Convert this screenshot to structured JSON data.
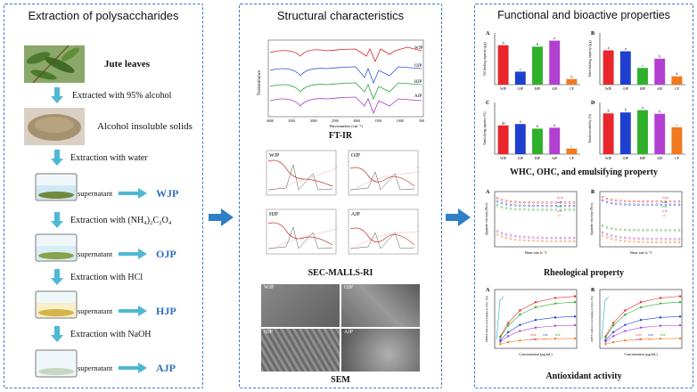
{
  "panels": {
    "extraction": {
      "title": "Extraction of polysaccharides",
      "material": "Jute leaves",
      "steps": [
        "Extracted with 95% alcohol",
        "Extraction with water",
        "Extraction with (NH₄)₂C₂O₄",
        "Extraction with HCl",
        "Extraction with NaOH"
      ],
      "ais_label": "Alcohol insoluble solids",
      "supernatant_label": "supernatant",
      "products": [
        "WJP",
        "OJP",
        "HJP",
        "AJP"
      ]
    },
    "structural": {
      "title": "Structural characteristics",
      "ftir_caption": "FT-IR",
      "ftir_ylabel": "Transmittance",
      "ftir_xlabel": "Wavenumber (cm⁻¹)",
      "ftir_ticks": [
        "4000",
        "3500",
        "3000",
        "2500",
        "2000",
        "1500",
        "1000",
        "500"
      ],
      "ftir_series": [
        "WJP",
        "OJP",
        "HJP",
        "AJP"
      ],
      "sec_caption": "SEC-MALLS-RI",
      "sec_panels": [
        "WJP",
        "OJP",
        "HJP",
        "AJP"
      ],
      "sem_caption": "SEM",
      "sem_panels": [
        "WJP",
        "OJP",
        "HJP",
        "AJP"
      ]
    },
    "functional": {
      "title": "Functional and bioactive properties",
      "whc_caption": "WHC, OHC, and emulsifying property",
      "rheology_caption": "Rheological property",
      "antioxidant_caption": "Antioxidant activity",
      "bar_categories": [
        "WJP",
        "OJP",
        "HJP",
        "AJP",
        "CP"
      ],
      "bar_colors": [
        "#e8262b",
        "#1f3fcf",
        "#2fb02a",
        "#b23fd0",
        "#f07a1f"
      ],
      "bar_charts": [
        {
          "letter": "A",
          "ylabel": "Oil holding capacity (g/g)",
          "values": [
            0.85,
            0.28,
            0.82,
            0.95,
            0.12
          ],
          "labels": [
            "b",
            "c",
            "b",
            "a",
            "d"
          ]
        },
        {
          "letter": "B",
          "ylabel": "Water holding capacity (g/g)",
          "values": [
            0.74,
            0.72,
            0.36,
            0.56,
            0.18
          ],
          "labels": [
            "a",
            "a",
            "c",
            "b",
            "d"
          ]
        },
        {
          "letter": "C",
          "ylabel": "Emulsifying capacity (%)",
          "values": [
            0.62,
            0.65,
            0.55,
            0.57,
            0.12
          ],
          "labels": [
            "ab",
            "a",
            "b",
            "b",
            "c"
          ]
        },
        {
          "letter": "D",
          "ylabel": "Emulsion stability (%)",
          "values": [
            0.88,
            0.9,
            0.95,
            0.87,
            0.58
          ],
          "labels": [
            "b",
            "b",
            "a",
            "b",
            "c"
          ]
        }
      ],
      "rheo_ylabel": "Apparent viscosity (Pa·s)",
      "rheo_xlabel": "Shear rate (s⁻¹)",
      "anti_xlabel": "Concentration (μg/mL)",
      "anti_ylabel_a": "DPPH radical scavenging activity (%)",
      "anti_ylabel_b": "ABTS radical scavenging activity (%)"
    }
  },
  "colors": {
    "border": "#3b78c4",
    "arrow": "#4fb8d4",
    "big_arrow": "#2e7fc7",
    "product": "#2f6fbf"
  }
}
